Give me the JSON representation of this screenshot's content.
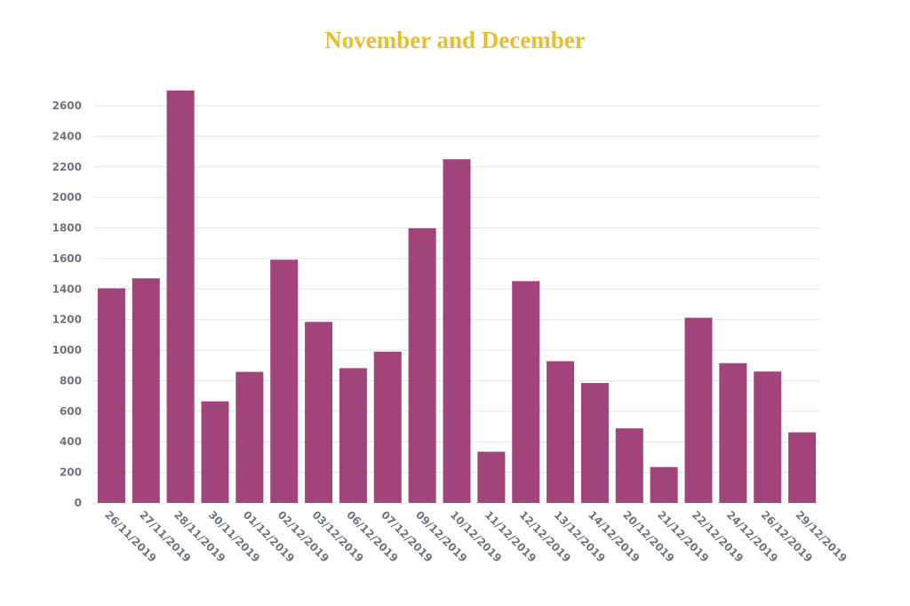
{
  "chart_data": {
    "type": "bar",
    "title": "November and December",
    "xlabel": "",
    "ylabel": "",
    "categories": [
      "26/11/2019",
      "27/11/2019",
      "28/11/2019",
      "30/11/2019",
      "01/12/2019",
      "02/12/2019",
      "03/12/2019",
      "06/12/2019",
      "07/12/2019",
      "09/12/2019",
      "10/12/2019",
      "11/12/2019",
      "12/12/2019",
      "13/12/2019",
      "14/12/2019",
      "20/12/2019",
      "21/12/2019",
      "22/12/2019",
      "24/12/2019",
      "26/12/2019",
      "29/12/2019"
    ],
    "values": [
      1405,
      1470,
      2700,
      665,
      858,
      1592,
      1185,
      882,
      990,
      1798,
      2250,
      335,
      1452,
      928,
      785,
      488,
      235,
      1212,
      915,
      860,
      462
    ],
    "yticks": [
      0,
      200,
      400,
      600,
      800,
      1000,
      1200,
      1400,
      1600,
      1800,
      2000,
      2200,
      2400,
      2600
    ],
    "ylim": [
      0,
      2800
    ],
    "grid": true,
    "legend": "none",
    "colors": {
      "bar": "#a04479",
      "title": "#e8bd2f",
      "axis_text": "#6d7480",
      "grid": "#e3e6ee"
    }
  }
}
